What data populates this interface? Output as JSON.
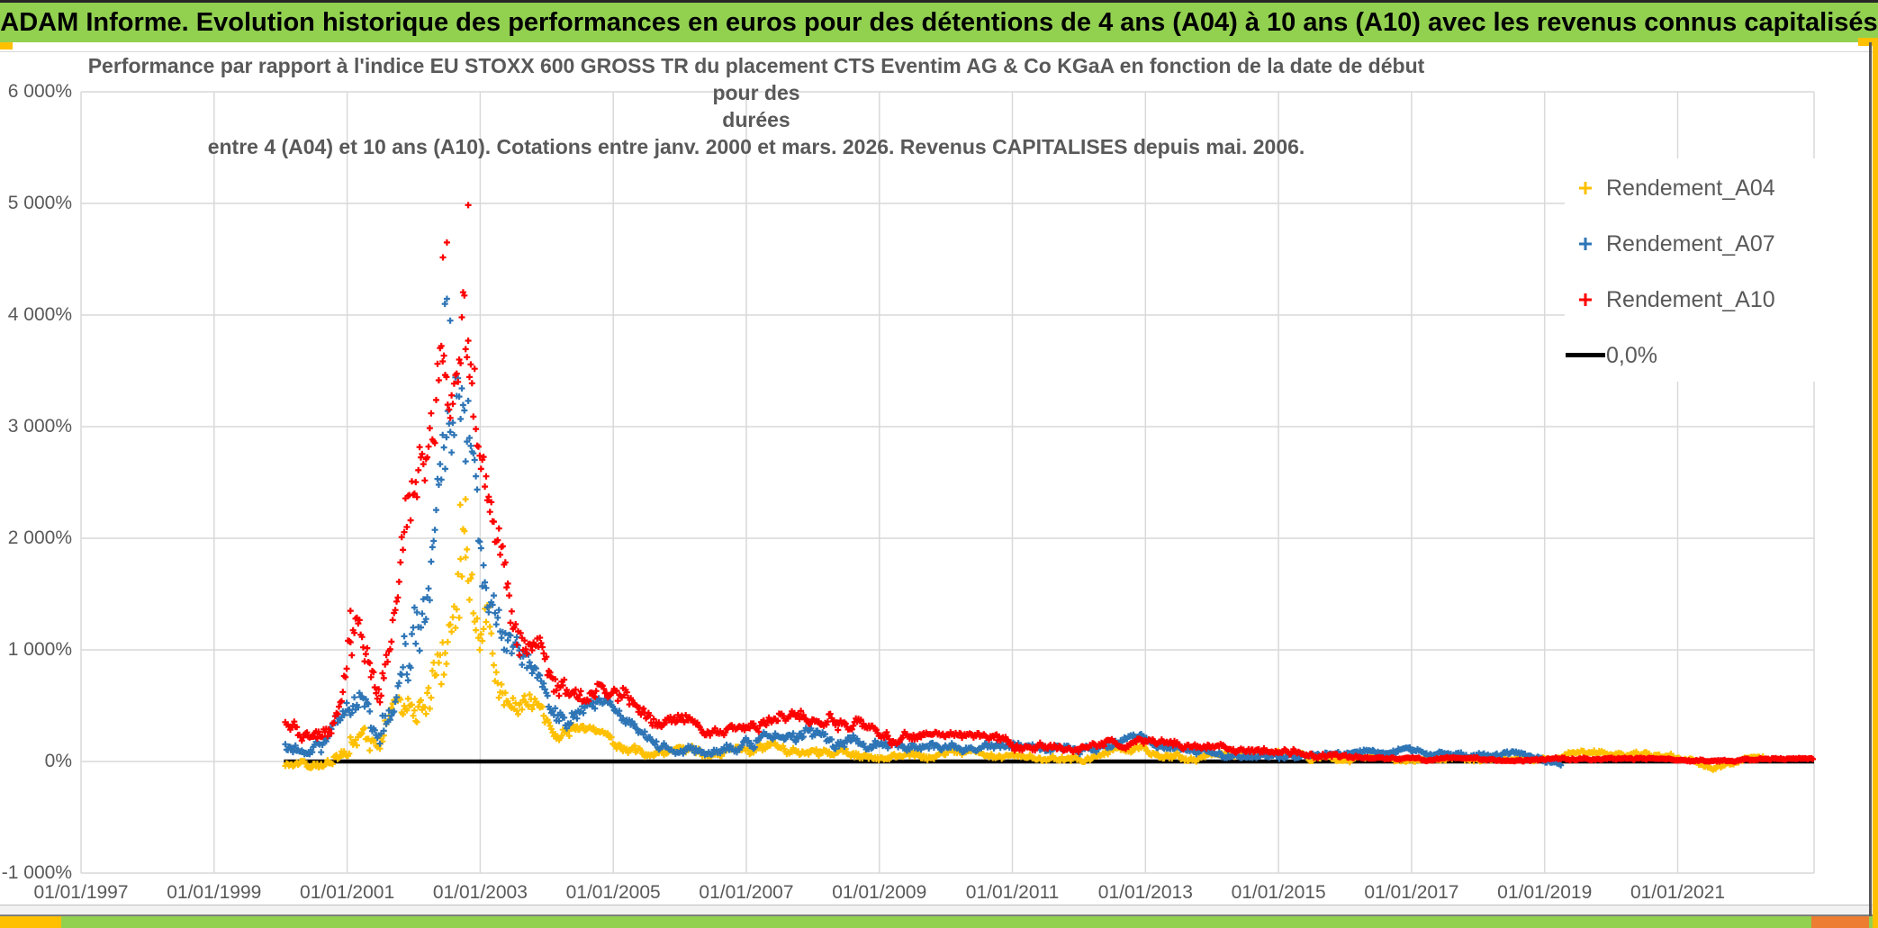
{
  "window": {
    "title_bar": {
      "text": "ADAM Informe. Evolution historique des performances en euros pour des détentions de 4 ans (A04) à 10 ans (A10) avec les revenus connus capitalisés",
      "bg_color": "#92D050",
      "text_color": "#000000"
    },
    "accents": {
      "gold": "#FFC000",
      "orange": "#ED7D31",
      "frame_gray": "#595959",
      "bottom_bar_color": "#92D050"
    }
  },
  "chart_data": {
    "type": "scatter",
    "title_lines": [
      "Performance par rapport à l'indice EU STOXX 600 GROSS TR  du placement CTS Eventim AG & Co KGaA en fonction de la date de début pour des",
      "durées",
      "entre 4 (A04) et 10 ans (A10). Cotations entre janv. 2000 et mars. 2026. Revenus CAPITALISES depuis mai. 2006."
    ],
    "grid_color": "#D9D9D9",
    "axis_text_color": "#595959",
    "x_axis": {
      "min_year": 1997.0,
      "max_year": 2023.05,
      "tick_years": [
        1997,
        1999,
        2001,
        2003,
        2005,
        2007,
        2009,
        2011,
        2013,
        2015,
        2017,
        2019,
        2021
      ],
      "tick_labels": [
        "01/01/1997",
        "01/01/1999",
        "01/01/2001",
        "01/01/2003",
        "01/01/2005",
        "01/01/2007",
        "01/01/2009",
        "01/01/2011",
        "01/01/2013",
        "01/01/2015",
        "01/01/2017",
        "01/01/2019",
        "01/01/2021"
      ]
    },
    "y_axis": {
      "min": -1000,
      "max": 6000,
      "tick_values": [
        6000,
        5000,
        4000,
        3000,
        2000,
        1000,
        0,
        -1000
      ],
      "tick_labels": [
        "6 000%",
        "5 000%",
        "4 000%",
        "3 000%",
        "2 000%",
        "1 000%",
        "0%",
        "-1 000%"
      ]
    },
    "zero_line": {
      "label": "0,0%",
      "color": "#000000",
      "value": 0,
      "start_year": 2000.05,
      "end_year": 2023.05
    },
    "legend": {
      "position": "right",
      "text_color": "#595959"
    },
    "series": [
      {
        "name": "Rendement_A04",
        "color": "#FFC000",
        "marker": "plus",
        "start_year": 2000.07,
        "end_year": 2022.3,
        "points_per_year": 52,
        "seed": 11,
        "envelope_pct": [
          [
            2000.07,
            -70,
            30
          ],
          [
            2000.4,
            -60,
            40
          ],
          [
            2000.7,
            -40,
            80
          ],
          [
            2000.95,
            0,
            200
          ],
          [
            2001.1,
            50,
            350
          ],
          [
            2001.25,
            40,
            300
          ],
          [
            2001.45,
            0,
            150
          ],
          [
            2001.6,
            100,
            400
          ],
          [
            2001.8,
            250,
            700
          ],
          [
            2002.0,
            350,
            900
          ],
          [
            2002.2,
            500,
            1100
          ],
          [
            2002.4,
            700,
            1500
          ],
          [
            2002.6,
            1000,
            1900
          ],
          [
            2002.8,
            1300,
            2400
          ],
          [
            2002.95,
            1100,
            2000
          ],
          [
            2003.1,
            800,
            1500
          ],
          [
            2003.3,
            600,
            1100
          ],
          [
            2003.5,
            450,
            800
          ],
          [
            2003.7,
            350,
            650
          ],
          [
            2003.9,
            250,
            500
          ],
          [
            2004.1,
            180,
            350
          ],
          [
            2004.35,
            170,
            320
          ],
          [
            2004.65,
            180,
            300
          ],
          [
            2004.95,
            150,
            270
          ],
          [
            2005.15,
            100,
            220
          ],
          [
            2005.4,
            60,
            160
          ],
          [
            2005.7,
            20,
            110
          ],
          [
            2006.0,
            40,
            130
          ],
          [
            2006.4,
            40,
            130
          ],
          [
            2006.8,
            50,
            150
          ],
          [
            2007.1,
            60,
            160
          ],
          [
            2007.5,
            70,
            190
          ],
          [
            2007.8,
            70,
            190
          ],
          [
            2008.1,
            60,
            170
          ],
          [
            2008.5,
            50,
            160
          ],
          [
            2008.8,
            30,
            130
          ],
          [
            2009.1,
            20,
            120
          ],
          [
            2009.5,
            20,
            110
          ],
          [
            2010.0,
            30,
            120
          ],
          [
            2010.5,
            20,
            100
          ],
          [
            2011.0,
            20,
            100
          ],
          [
            2011.5,
            10,
            90
          ],
          [
            2012.0,
            0,
            80
          ],
          [
            2012.5,
            40,
            130
          ],
          [
            2012.9,
            40,
            140
          ],
          [
            2013.3,
            30,
            120
          ],
          [
            2013.7,
            10,
            90
          ],
          [
            2014.1,
            0,
            70
          ],
          [
            2014.6,
            10,
            80
          ],
          [
            2015.1,
            20,
            90
          ],
          [
            2015.6,
            0,
            70
          ],
          [
            2016.0,
            -10,
            50
          ],
          [
            2016.5,
            0,
            60
          ],
          [
            2017.0,
            0,
            60
          ],
          [
            2017.5,
            10,
            70
          ],
          [
            2018.0,
            0,
            60
          ],
          [
            2018.5,
            0,
            50
          ],
          [
            2019.0,
            10,
            60
          ],
          [
            2019.5,
            30,
            90
          ],
          [
            2020.0,
            40,
            110
          ],
          [
            2020.35,
            50,
            120
          ],
          [
            2020.7,
            40,
            110
          ],
          [
            2021.1,
            10,
            70
          ],
          [
            2021.55,
            -70,
            0
          ],
          [
            2021.8,
            -30,
            30
          ],
          [
            2022.0,
            -10,
            40
          ],
          [
            2022.3,
            0,
            40
          ]
        ],
        "outliers_pct": [
          [
            2002.78,
            2350
          ],
          [
            2002.7,
            2300
          ]
        ]
      },
      {
        "name": "Rendement_A07",
        "color": "#2E75B6",
        "marker": "plus",
        "start_year": 2000.07,
        "end_year": 2019.25,
        "points_per_year": 52,
        "seed": 22,
        "envelope_pct": [
          [
            2000.07,
            60,
            200
          ],
          [
            2000.4,
            40,
            170
          ],
          [
            2000.7,
            80,
            260
          ],
          [
            2000.95,
            200,
            500
          ],
          [
            2001.1,
            280,
            700
          ],
          [
            2001.25,
            250,
            600
          ],
          [
            2001.45,
            120,
            350
          ],
          [
            2001.6,
            300,
            800
          ],
          [
            2001.8,
            700,
            1400
          ],
          [
            2002.0,
            900,
            1700
          ],
          [
            2002.2,
            1300,
            2200
          ],
          [
            2002.4,
            1800,
            2900
          ],
          [
            2002.6,
            2300,
            3500
          ],
          [
            2002.78,
            2600,
            4000
          ],
          [
            2002.9,
            2200,
            3100
          ],
          [
            2003.05,
            1500,
            2300
          ],
          [
            2003.2,
            1100,
            1800
          ],
          [
            2003.4,
            800,
            1300
          ],
          [
            2003.6,
            600,
            1000
          ],
          [
            2003.85,
            600,
            850
          ],
          [
            2004.1,
            380,
            600
          ],
          [
            2004.35,
            300,
            520
          ],
          [
            2004.65,
            380,
            540
          ],
          [
            2004.95,
            400,
            560
          ],
          [
            2005.15,
            250,
            420
          ],
          [
            2005.4,
            120,
            280
          ],
          [
            2005.7,
            40,
            160
          ],
          [
            2006.0,
            60,
            180
          ],
          [
            2006.4,
            70,
            190
          ],
          [
            2006.8,
            90,
            210
          ],
          [
            2007.1,
            100,
            220
          ],
          [
            2007.5,
            140,
            290
          ],
          [
            2007.8,
            150,
            300
          ],
          [
            2008.1,
            130,
            270
          ],
          [
            2008.5,
            120,
            250
          ],
          [
            2008.8,
            90,
            210
          ],
          [
            2009.1,
            60,
            180
          ],
          [
            2009.5,
            60,
            160
          ],
          [
            2010.0,
            70,
            170
          ],
          [
            2010.5,
            70,
            160
          ],
          [
            2011.0,
            70,
            160
          ],
          [
            2011.5,
            60,
            140
          ],
          [
            2012.0,
            50,
            130
          ],
          [
            2012.5,
            90,
            190
          ],
          [
            2012.9,
            130,
            240
          ],
          [
            2013.3,
            110,
            210
          ],
          [
            2013.7,
            60,
            140
          ],
          [
            2014.1,
            40,
            110
          ],
          [
            2014.6,
            40,
            110
          ],
          [
            2015.1,
            30,
            100
          ],
          [
            2015.6,
            20,
            90
          ],
          [
            2016.0,
            20,
            80
          ],
          [
            2016.5,
            40,
            110
          ],
          [
            2017.0,
            50,
            120
          ],
          [
            2017.5,
            50,
            130
          ],
          [
            2018.0,
            40,
            120
          ],
          [
            2018.5,
            30,
            90
          ],
          [
            2018.9,
            0,
            50
          ],
          [
            2019.1,
            -60,
            10
          ],
          [
            2019.25,
            -60,
            0
          ]
        ],
        "outliers_pct": [
          [
            2002.5,
            4145
          ],
          [
            2002.55,
            3950
          ],
          [
            2002.47,
            4100
          ]
        ]
      },
      {
        "name": "Rendement_A10",
        "color": "#FF0000",
        "marker": "plus",
        "start_year": 2000.07,
        "end_year": 2023.05,
        "points_per_year": 52,
        "seed": 33,
        "envelope_pct": [
          [
            2000.07,
            230,
            430
          ],
          [
            2000.4,
            200,
            380
          ],
          [
            2000.7,
            250,
            500
          ],
          [
            2000.95,
            400,
            950
          ],
          [
            2001.1,
            550,
            1350
          ],
          [
            2001.25,
            500,
            1100
          ],
          [
            2001.45,
            300,
            650
          ],
          [
            2001.6,
            700,
            1500
          ],
          [
            2001.8,
            1300,
            2200
          ],
          [
            2002.0,
            1500,
            2600
          ],
          [
            2002.2,
            2000,
            3100
          ],
          [
            2002.4,
            2600,
            3900
          ],
          [
            2002.6,
            3200,
            4500
          ],
          [
            2002.78,
            3800,
            5000
          ],
          [
            2002.9,
            3200,
            4300
          ],
          [
            2003.05,
            2400,
            3300
          ],
          [
            2003.2,
            1800,
            2700
          ],
          [
            2003.4,
            1300,
            2000
          ],
          [
            2003.6,
            1000,
            1500
          ],
          [
            2003.85,
            1000,
            1300
          ],
          [
            2004.1,
            650,
            950
          ],
          [
            2004.35,
            550,
            850
          ],
          [
            2004.65,
            530,
            750
          ],
          [
            2004.95,
            600,
            820
          ],
          [
            2005.15,
            450,
            650
          ],
          [
            2005.4,
            300,
            480
          ],
          [
            2005.7,
            200,
            380
          ],
          [
            2006.0,
            230,
            400
          ],
          [
            2006.4,
            220,
            380
          ],
          [
            2006.8,
            250,
            400
          ],
          [
            2007.1,
            180,
            330
          ],
          [
            2007.5,
            250,
            430
          ],
          [
            2007.8,
            280,
            450
          ],
          [
            2008.1,
            250,
            400
          ],
          [
            2008.5,
            280,
            430
          ],
          [
            2008.8,
            220,
            360
          ],
          [
            2009.1,
            150,
            280
          ],
          [
            2009.5,
            150,
            260
          ],
          [
            2010.0,
            140,
            260
          ],
          [
            2010.5,
            130,
            240
          ],
          [
            2011.0,
            110,
            220
          ],
          [
            2011.5,
            110,
            200
          ],
          [
            2012.0,
            90,
            180
          ],
          [
            2012.5,
            100,
            190
          ],
          [
            2013.0,
            110,
            200
          ],
          [
            2013.5,
            100,
            180
          ],
          [
            2014.0,
            80,
            160
          ],
          [
            2014.5,
            90,
            170
          ],
          [
            2015.0,
            60,
            150
          ],
          [
            2015.5,
            40,
            110
          ],
          [
            2015.9,
            20,
            70
          ],
          [
            2016.3,
            5,
            40
          ],
          [
            2017.0,
            5,
            35
          ],
          [
            2018.0,
            5,
            35
          ],
          [
            2019.0,
            2,
            32
          ],
          [
            2020.0,
            2,
            30
          ],
          [
            2021.0,
            2,
            30
          ],
          [
            2022.0,
            2,
            28
          ],
          [
            2023.05,
            2,
            28
          ]
        ],
        "outliers_pct": [
          [
            2001.05,
            1350
          ],
          [
            2002.44,
            4516
          ],
          [
            2002.5,
            4650
          ],
          [
            2002.82,
            4985
          ]
        ]
      }
    ]
  }
}
